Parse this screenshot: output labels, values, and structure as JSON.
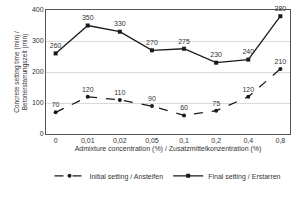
{
  "chart_data": {
    "type": "line",
    "x_label": "Admixture concentration (%) / Zusatzmittelkonzentration (%)",
    "y_label": "Concrete setting time (min) / Betonerstarrungszeit (min)",
    "categories": [
      "0",
      "0,01",
      "0,02",
      "0,05",
      "0,1",
      "0,2",
      "0,4",
      "0,8"
    ],
    "series": [
      {
        "name": "Initial setting / Ansteifen",
        "color": "#1a1a1a",
        "marker": "circle",
        "line_style": "dash",
        "values": [
          70,
          120,
          110,
          90,
          60,
          75,
          120,
          210
        ]
      },
      {
        "name": "Final setting / Erstarren",
        "color": "#1a1a1a",
        "marker": "square",
        "line_style": "solid",
        "values": [
          260,
          350,
          330,
          270,
          275,
          230,
          240,
          380
        ]
      }
    ],
    "ylim": [
      0,
      400
    ],
    "yticks": [
      0,
      100,
      200,
      300,
      400
    ],
    "grid": true,
    "data_labels": true,
    "legend": "bottom"
  }
}
